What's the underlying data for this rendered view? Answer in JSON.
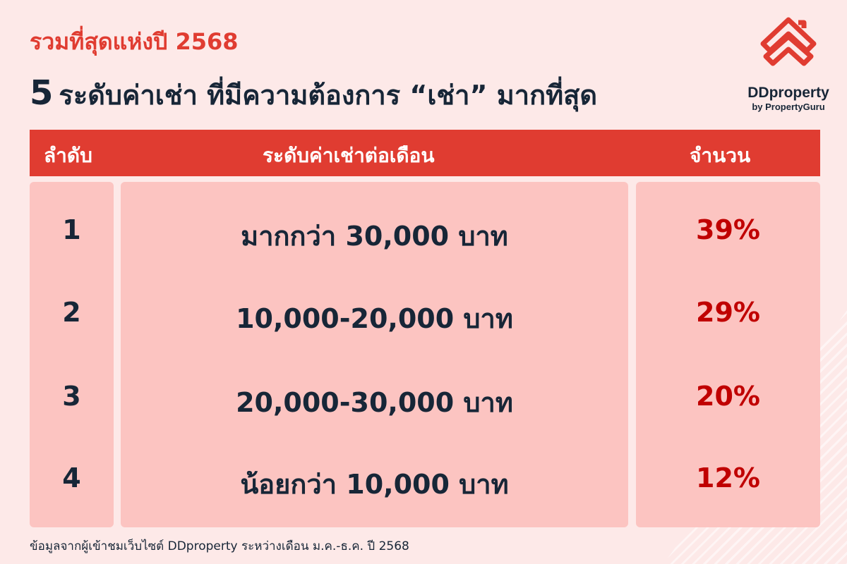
{
  "subtitle": "รวมที่สุดแห่งปี 2568",
  "title": {
    "number": "5",
    "text": "ระดับค่าเช่า ที่มีความต้องการ “เช่า” มากที่สุด"
  },
  "logo": {
    "brand": "DDproperty",
    "tagline": "by PropertyGuru",
    "color": "#e03c31"
  },
  "colors": {
    "header": "#e03c31",
    "cell": "#fcc4c1",
    "background": "#fde9e8",
    "percent": "#c00000",
    "text": "#172637"
  },
  "chart_data": {
    "type": "table",
    "columns": [
      "ลำดับ",
      "ระดับค่าเช่าต่อเดือน",
      "จำนวน"
    ],
    "rows": [
      {
        "rank": "1",
        "range": "มากกว่า 30,000 บาท",
        "share": "39%"
      },
      {
        "rank": "2",
        "range": "10,000-20,000 บาท",
        "share": "29%"
      },
      {
        "rank": "3",
        "range": "20,000-30,000 บาท",
        "share": "20%"
      },
      {
        "rank": "4",
        "range": "น้อยกว่า 10,000 บาท",
        "share": "12%"
      }
    ]
  },
  "footer": "ข้อมูลจากผู้เข้าชมเว็บไซต์ DDproperty ระหว่างเดือน ม.ค.-ธ.ค. ปี 2568"
}
